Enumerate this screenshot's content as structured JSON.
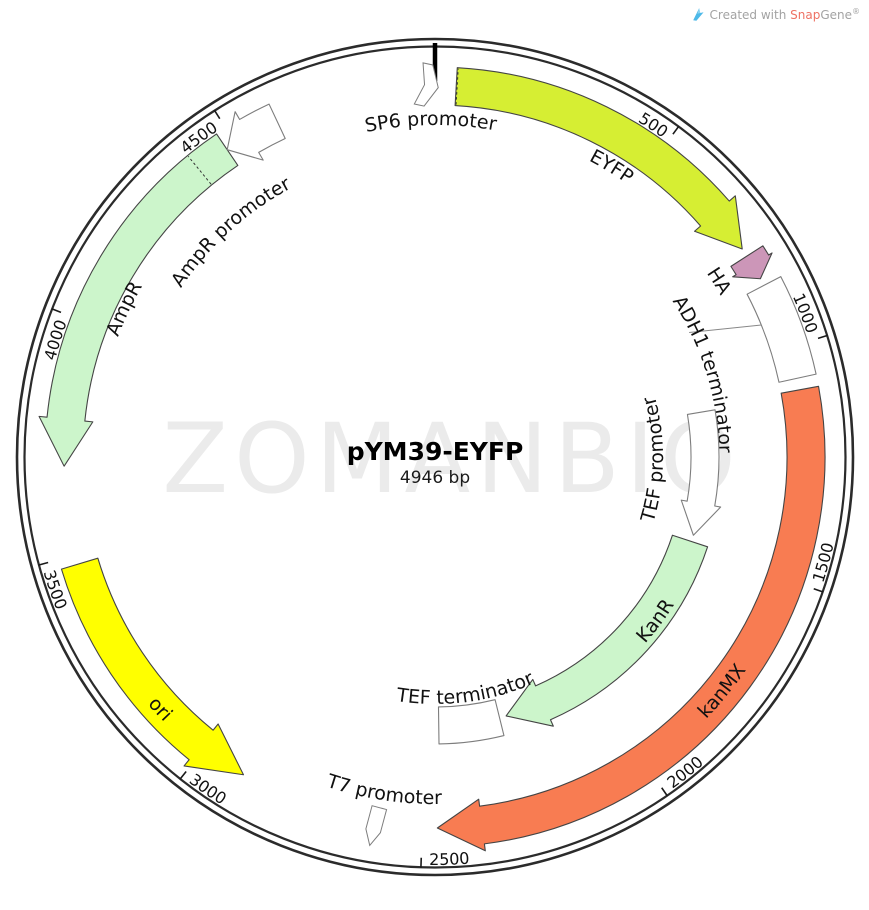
{
  "header": {
    "created_with": "Created with",
    "brand_part1": "Snap",
    "brand_part2": "Gene",
    "registered": "®",
    "logo_color": "#4db9e8"
  },
  "watermark": {
    "text": "ZOMANBIO",
    "color": "#ebebeb"
  },
  "plasmid": {
    "name": "pYM39-EYFP",
    "length_bp": 4946,
    "length_label": "4946 bp"
  },
  "colors": {
    "ring": "#2b2b2b",
    "tick": "#1a1a1a",
    "label": "#111111",
    "feature_outline": "#444444",
    "white_outline": "#7d7d7d",
    "eyfp_green": "#d6ee33",
    "ha_plum": "#cc96b8",
    "kanmx_orange": "#f87c52",
    "pale_green": "#ccf5cb",
    "ori_yellow": "#ffff00",
    "white": "#ffffff"
  },
  "ticks": [
    {
      "bp": 500,
      "label": "500"
    },
    {
      "bp": 1000,
      "label": "1000"
    },
    {
      "bp": 1500,
      "label": "1500"
    },
    {
      "bp": 2000,
      "label": "2000"
    },
    {
      "bp": 2500,
      "label": "2500"
    },
    {
      "bp": 3000,
      "label": "3000"
    },
    {
      "bp": 3500,
      "label": "3500"
    },
    {
      "bp": 4000,
      "label": "4000"
    },
    {
      "bp": 4500,
      "label": "4500"
    }
  ],
  "features": [
    {
      "id": "sp6-promoter",
      "label": "SP6 promoter",
      "type": "promoter-glyph",
      "bp": 4928,
      "glyph_r": 372,
      "glyph_rot": 12,
      "glyph_tip": "right",
      "fill": "#ffffff",
      "label_bp": 4936,
      "label_r": 332
    },
    {
      "id": "eyfp",
      "label": "EYFP",
      "type": "arc-arrow",
      "start": 45,
      "end": 768,
      "dir": "cw",
      "band": "outer",
      "fill": "#d6ee33",
      "head_bp": 95,
      "over": 8,
      "dotted_bp": 47,
      "label_bp": 430,
      "label_r": 334
    },
    {
      "id": "ha",
      "label": "HA",
      "type": "arc-arrow",
      "start": 786,
      "end": 842,
      "dir": "cw",
      "band": "outer",
      "fill": "#cc96b8",
      "head_bp": 34,
      "over": 4,
      "label_bp": 800,
      "label_r": 328
    },
    {
      "id": "adh1-terminator",
      "label": "ADH1 terminator",
      "type": "arc-box",
      "start": 858,
      "end": 1068,
      "band": "outer",
      "fill": "#ffffff",
      "label_bp": 1002,
      "label_r": 284,
      "leader": {
        "from_r": 283,
        "from_bp": 878,
        "to_r": 352,
        "to_bp": 934
      }
    },
    {
      "id": "kanmx",
      "label": "kanMX",
      "type": "arc-arrow",
      "start": 1093,
      "end": 2468,
      "dir": "cw",
      "band": "outer",
      "fill": "#f87c52",
      "head_bp": 95,
      "over": 7,
      "label_bp": 1775,
      "label_r": 377,
      "label_on_band": true
    },
    {
      "id": "tef-promoter",
      "label": "TEF promoter",
      "type": "arc-arrow",
      "start": 1105,
      "end": 1468,
      "dir": "cw",
      "band": "inner",
      "rin": 256,
      "rout": 284,
      "fill": "#ffffff",
      "head_bp": 95,
      "over": 6,
      "label_bp": 1245,
      "label_r": 228
    },
    {
      "id": "kanr",
      "label": "KanR",
      "type": "arc-arrow",
      "start": 1487,
      "end": 2262,
      "dir": "cw",
      "band": "inner",
      "fill": "#ccf5cb",
      "head_bp": 115,
      "over": 7,
      "label_bp": 1740,
      "label_r": 281,
      "label_on_band": true
    },
    {
      "id": "tef-terminator",
      "label": "TEF terminator",
      "type": "arc-box",
      "start": 2282,
      "end": 2462,
      "band": "inner",
      "fill": "#ffffff",
      "label_bp": 2372,
      "label_r": 247
    },
    {
      "id": "t7-promoter",
      "label": "T7 promoter",
      "type": "promoter-glyph",
      "bp": 2600,
      "glyph_r": 374,
      "glyph_rot": 15,
      "glyph_tip": "down",
      "fill": "#ffffff",
      "label_bp": 2591,
      "label_r": 347
    },
    {
      "id": "ori",
      "label": "ori",
      "type": "arc-arrow",
      "start": 2900,
      "end": 3480,
      "dir": "ccw",
      "band": "outer",
      "fill": "#ffff00",
      "head_bp": 110,
      "over": 8,
      "label_bp": 3125,
      "label_r": 379,
      "label_on_band": true
    },
    {
      "id": "ampr",
      "label": "AmpR",
      "type": "arc-arrow",
      "start": 3690,
      "end": 4478,
      "dir": "ccw",
      "band": "outer",
      "fill": "#ccf5cb",
      "head_bp": 100,
      "over": 8,
      "dotted_bp": 4405,
      "label_bp": 4060,
      "label_r": 339
    },
    {
      "id": "ampr-promoter",
      "label": "AmpR promoter",
      "type": "arc-arrow",
      "start": 4478,
      "end": 4600,
      "dir": "ccw",
      "band": "outer",
      "fill": "#ffffff",
      "head_bp": 55,
      "over": 9,
      "label_bp": 4366,
      "label_r": 305
    }
  ]
}
